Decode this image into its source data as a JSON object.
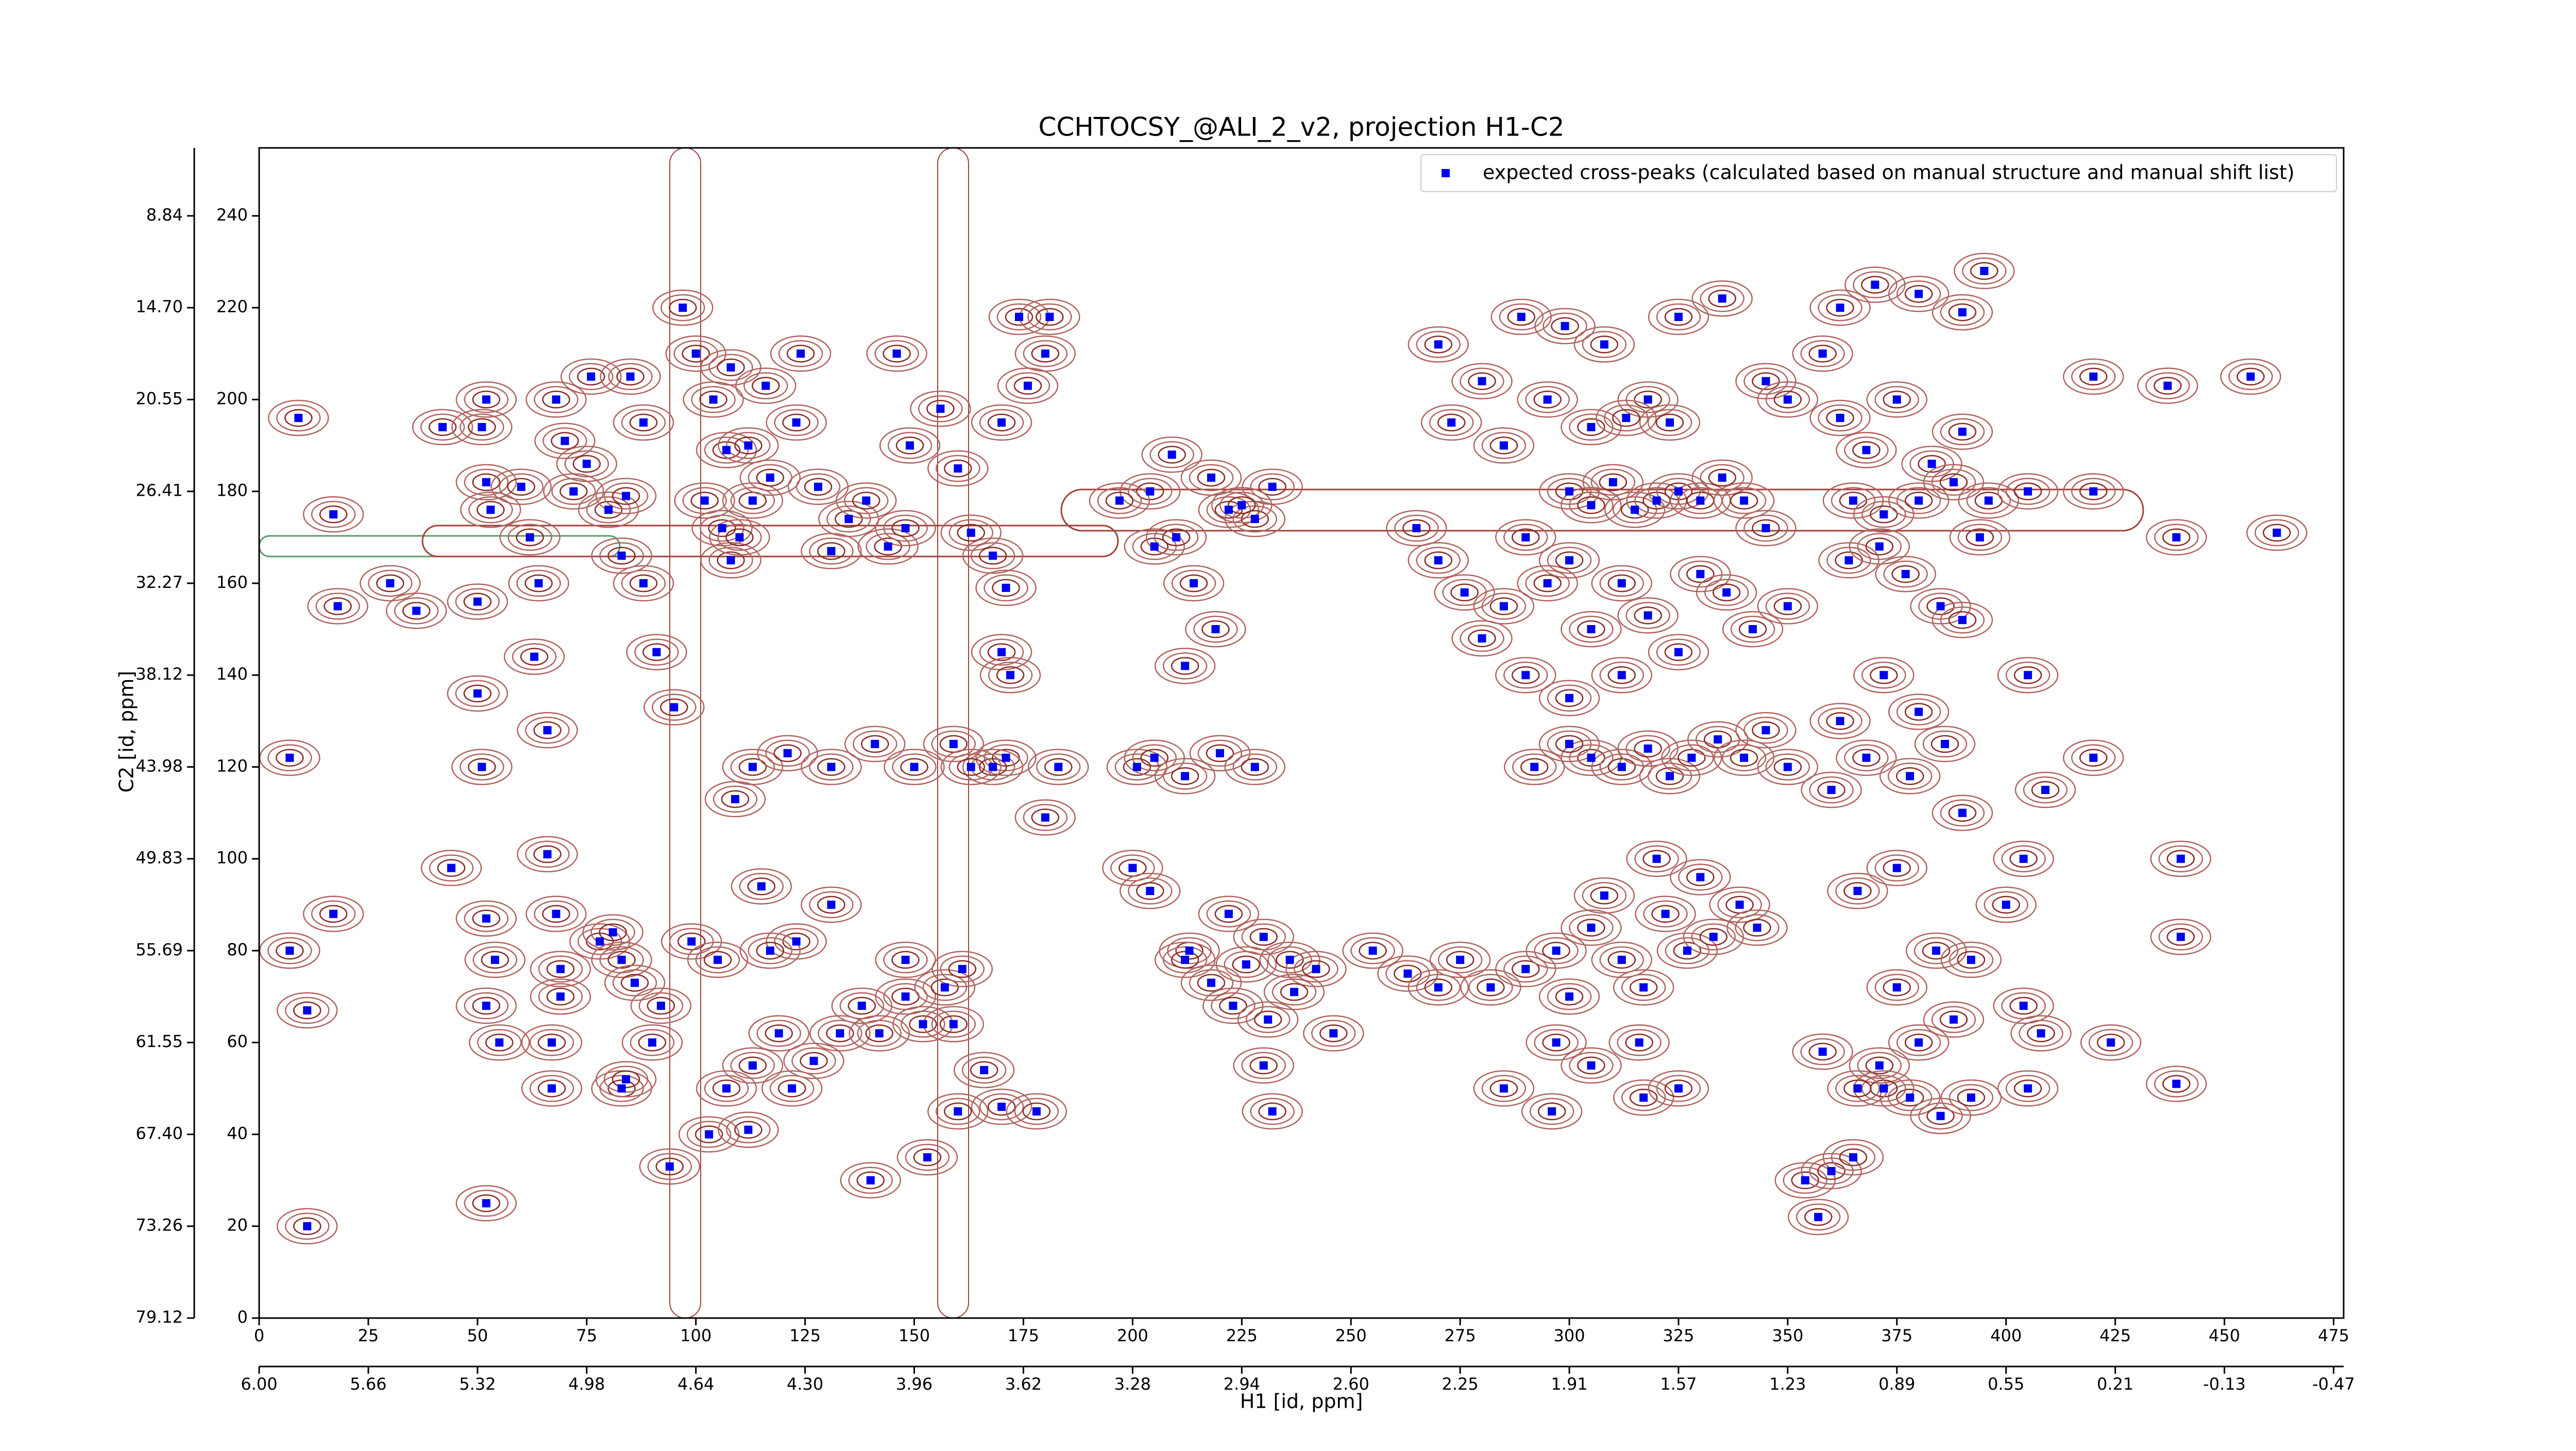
{
  "chart_data": {
    "type": "scatter",
    "title": "CCHTOCSY_@ALI_2_v2, projection H1-C2",
    "xlabel": "H1 [id, ppm]",
    "ylabel": "C2 [id, ppm]",
    "legend": "upper right",
    "xlim": [
      0,
      477.3
    ],
    "ylim": [
      0,
      254.8
    ],
    "xticks": [
      0,
      25,
      50,
      75,
      100,
      125,
      150,
      175,
      200,
      225,
      250,
      275,
      300,
      325,
      350,
      375,
      400,
      425,
      450,
      475
    ],
    "yticks": [
      0,
      20,
      40,
      60,
      80,
      100,
      120,
      140,
      160,
      180,
      200,
      220,
      240
    ],
    "x2ticks": [
      {
        "value": 0,
        "label": "6.00"
      },
      {
        "value": 25,
        "label": "5.66"
      },
      {
        "value": 50,
        "label": "5.32"
      },
      {
        "value": 75,
        "label": "4.98"
      },
      {
        "value": 100,
        "label": "4.64"
      },
      {
        "value": 125,
        "label": "4.30"
      },
      {
        "value": 150,
        "label": "3.96"
      },
      {
        "value": 175,
        "label": "3.62"
      },
      {
        "value": 200,
        "label": "3.28"
      },
      {
        "value": 225,
        "label": "2.94"
      },
      {
        "value": 250,
        "label": "2.60"
      },
      {
        "value": 275,
        "label": "2.25"
      },
      {
        "value": 300,
        "label": "1.91"
      },
      {
        "value": 325,
        "label": "1.57"
      },
      {
        "value": 350,
        "label": "1.23"
      },
      {
        "value": 375,
        "label": "0.89"
      },
      {
        "value": 400,
        "label": "0.55"
      },
      {
        "value": 425,
        "label": "0.21"
      },
      {
        "value": 450,
        "label": "-0.13"
      },
      {
        "value": 475,
        "label": "-0.47"
      }
    ],
    "y2ticks": [
      {
        "value": 0,
        "label": "79.12"
      },
      {
        "value": 20,
        "label": "73.26"
      },
      {
        "value": 40,
        "label": "67.40"
      },
      {
        "value": 60,
        "label": "61.55"
      },
      {
        "value": 80,
        "label": "55.69"
      },
      {
        "value": 100,
        "label": "49.83"
      },
      {
        "value": 120,
        "label": "43.98"
      },
      {
        "value": 140,
        "label": "38.12"
      },
      {
        "value": 160,
        "label": "32.27"
      },
      {
        "value": 180,
        "label": "26.41"
      },
      {
        "value": 200,
        "label": "20.55"
      },
      {
        "value": 220,
        "label": "14.70"
      },
      {
        "value": 240,
        "label": "8.84"
      }
    ],
    "series": [
      {
        "name": "expected cross-peaks (calculated based on manual structure and manual shift list)",
        "color": "#0000ee",
        "x": [
          7,
          11,
          17,
          18,
          9,
          7,
          11,
          17,
          30,
          36,
          42,
          44,
          50,
          52,
          51,
          52,
          53,
          50,
          51,
          52,
          54,
          52,
          52,
          55,
          60,
          62,
          64,
          63,
          66,
          66,
          68,
          69,
          69,
          67,
          67,
          70,
          68,
          76,
          72,
          75,
          80,
          83,
          84,
          85,
          88,
          88,
          91,
          95,
          78,
          81,
          83,
          86,
          83,
          84,
          90,
          92,
          94,
          97,
          100,
          104,
          108,
          107,
          102,
          106,
          108,
          110,
          113,
          117,
          112,
          116,
          124,
          123,
          128,
          131,
          135,
          139,
          144,
          148,
          146,
          156,
          149,
          160,
          163,
          168,
          171,
          170,
          172,
          171,
          168,
          180,
          183,
          174,
          181,
          180,
          170,
          176,
          103,
          107,
          113,
          119,
          122,
          127,
          133,
          138,
          142,
          148,
          152,
          157,
          161,
          159,
          166,
          170,
          178,
          160,
          153,
          140,
          112,
          109,
          115,
          123,
          117,
          131,
          148,
          99,
          105,
          113,
          121,
          131,
          141,
          150,
          159,
          163,
          201,
          205,
          212,
          220,
          228,
          212,
          205,
          210,
          214,
          219,
          222,
          228,
          232,
          204,
          197,
          209,
          218,
          225,
          200,
          204,
          213,
          218,
          222,
          226,
          230,
          236,
          212,
          223,
          231,
          237,
          242,
          246,
          230,
          232,
          255,
          263,
          270,
          275,
          282,
          290,
          297,
          300,
          305,
          312,
          317,
          322,
          327,
          333,
          339,
          343,
          330,
          320,
          308,
          297,
          305,
          316,
          285,
          296,
          317,
          325,
          265,
          270,
          276,
          280,
          285,
          290,
          295,
          300,
          305,
          310,
          315,
          320,
          325,
          330,
          335,
          340,
          345,
          300,
          305,
          312,
          318,
          325,
          330,
          336,
          342,
          350,
          290,
          300,
          312,
          305,
          312,
          318,
          323,
          328,
          334,
          340,
          292,
          300,
          345,
          350,
          270,
          280,
          289,
          299,
          308,
          318,
          325,
          335,
          345,
          350,
          273,
          285,
          295,
          305,
          313,
          323,
          358,
          362,
          370,
          380,
          390,
          395,
          362,
          368,
          375,
          383,
          390,
          396,
          365,
          372,
          380,
          388,
          394,
          364,
          371,
          377,
          385,
          390,
          372,
          380,
          386,
          378,
          390,
          362,
          368,
          360,
          366,
          375,
          384,
          392,
          400,
          375,
          380,
          388,
          371,
          378,
          385,
          392,
          372,
          354,
          357,
          360,
          358,
          365,
          366,
          405,
          405,
          409,
          404,
          404,
          408,
          405,
          420,
          420,
          420,
          424,
          437,
          439,
          440,
          440,
          439,
          456,
          462
        ],
        "y": [
          122,
          20,
          175,
          155,
          196,
          80,
          67,
          88,
          160,
          154,
          194,
          98,
          136,
          200,
          194,
          182,
          176,
          156,
          120,
          87,
          78,
          68,
          25,
          60,
          181,
          170,
          160,
          144,
          128,
          101,
          88,
          76,
          70,
          60,
          50,
          191,
          200,
          205,
          180,
          186,
          176,
          166,
          179,
          205,
          195,
          160,
          145,
          133,
          82,
          84,
          78,
          73,
          50,
          52,
          60,
          68,
          33,
          220,
          210,
          200,
          207,
          189,
          178,
          172,
          165,
          170,
          178,
          183,
          190,
          203,
          210,
          195,
          181,
          167,
          174,
          178,
          168,
          172,
          210,
          198,
          190,
          185,
          171,
          166,
          159,
          145,
          140,
          122,
          120,
          109,
          120,
          218,
          218,
          210,
          195,
          203,
          40,
          50,
          55,
          62,
          50,
          56,
          62,
          68,
          62,
          70,
          64,
          72,
          76,
          64,
          54,
          46,
          45,
          45,
          35,
          30,
          41,
          113,
          94,
          82,
          80,
          90,
          78,
          82,
          78,
          120,
          123,
          120,
          125,
          120,
          125,
          120,
          120,
          122,
          118,
          123,
          120,
          142,
          168,
          170,
          160,
          150,
          176,
          174,
          181,
          180,
          178,
          188,
          183,
          177,
          98,
          93,
          80,
          73,
          88,
          77,
          83,
          78,
          78,
          68,
          65,
          71,
          76,
          62,
          55,
          45,
          80,
          75,
          72,
          78,
          72,
          76,
          80,
          70,
          85,
          78,
          72,
          88,
          80,
          83,
          90,
          85,
          96,
          100,
          92,
          60,
          55,
          60,
          50,
          45,
          48,
          50,
          172,
          165,
          158,
          148,
          155,
          170,
          160,
          180,
          177,
          182,
          176,
          178,
          180,
          178,
          183,
          178,
          172,
          165,
          150,
          160,
          153,
          145,
          162,
          158,
          150,
          155,
          140,
          135,
          140,
          122,
          120,
          124,
          118,
          122,
          126,
          122,
          120,
          125,
          128,
          120,
          212,
          204,
          218,
          216,
          212,
          200,
          218,
          222,
          204,
          200,
          195,
          190,
          200,
          194,
          196,
          195,
          210,
          220,
          225,
          223,
          219,
          228,
          196,
          189,
          200,
          186,
          193,
          178,
          178,
          175,
          178,
          182,
          170,
          165,
          168,
          162,
          155,
          152,
          140,
          132,
          125,
          118,
          110,
          130,
          122,
          115,
          93,
          98,
          80,
          78,
          90,
          72,
          60,
          65,
          55,
          48,
          44,
          48,
          50,
          30,
          22,
          32,
          58,
          35,
          50,
          180,
          140,
          115,
          100,
          68,
          62,
          50,
          205,
          122,
          180,
          60,
          203,
          170,
          100,
          83,
          51,
          205,
          171
        ]
      }
    ]
  }
}
